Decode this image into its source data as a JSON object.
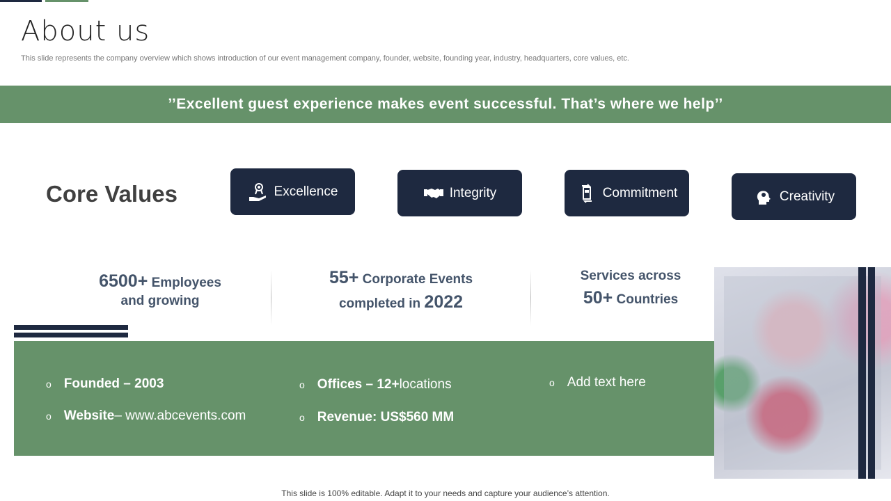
{
  "header": {
    "title": "About us",
    "subtitle": "This slide represents the company overview which shows introduction of our event management company, founder, website, founding year, industry, headquarters, core values, etc."
  },
  "banner": {
    "quote": "’’Excellent guest experience makes event successful. That’s where we help’’"
  },
  "core_values": {
    "heading": "Core Values",
    "items": [
      {
        "label": "Excellence",
        "icon": "award-hand-icon"
      },
      {
        "label": "Integrity",
        "icon": "handshake-icon"
      },
      {
        "label": "Commitment",
        "icon": "commitment-cycle-icon"
      },
      {
        "label": "Creativity",
        "icon": "head-gear-icon"
      }
    ]
  },
  "stats": [
    {
      "big": "6500+",
      "text1": " Employees",
      "text2": "and growing"
    },
    {
      "big": "55+",
      "text1": " Corporate Events",
      "text2": "completed in ",
      "big2": "2022"
    },
    {
      "text0": "Services across",
      "big": "50+",
      "text1": " Countries"
    }
  ],
  "facts": {
    "founded_label": "Founded – 2003",
    "website_label": "Website",
    "website_value": " – www.abcevents.com",
    "offices_label": "Offices – 12+",
    "offices_value": " locations",
    "revenue_label": "Revenue: US$560 MM",
    "extra": "Add text here",
    "bullet": "o"
  },
  "colors": {
    "green": "#66926a",
    "navy": "#1e2940",
    "stat_text": "#44546a"
  },
  "footer": "This slide is 100% editable. Adapt it to your needs and capture your audience’s attention."
}
